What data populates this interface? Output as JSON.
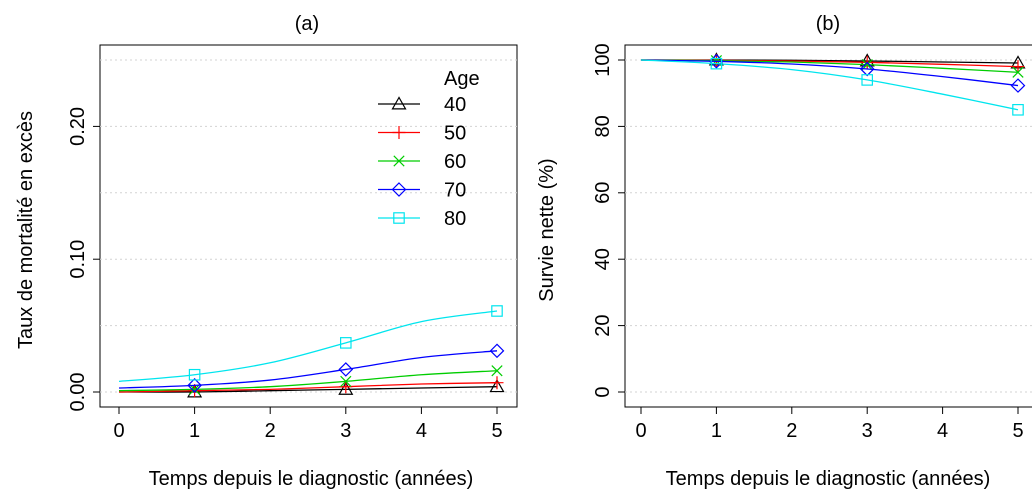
{
  "chart_data": [
    {
      "type": "line",
      "title": "(a)",
      "xlabel": "Temps depuis le diagnostic (années)",
      "ylabel": "Taux de mortalité en excès",
      "xlim": [
        0,
        5
      ],
      "ylim": [
        0,
        0.25
      ],
      "xticks": [
        0,
        1,
        2,
        3,
        4,
        5
      ],
      "yticks": [
        0.0,
        0.1,
        0.2
      ],
      "ytick_labels": [
        "0.00",
        "0.10",
        "0.20"
      ],
      "grid": "horizontal dotted at 0.00, 0.05, 0.10, 0.15, 0.20, 0.25",
      "legend": {
        "title": "Age",
        "placement": "top-right"
      },
      "x": [
        0,
        1,
        2,
        3,
        4,
        5
      ],
      "marker_x": [
        1,
        3,
        5
      ],
      "series": [
        {
          "name": "40",
          "color": "#000000",
          "marker": "triangle",
          "values": [
            0.0,
            0.0,
            0.001,
            0.002,
            0.003,
            0.004
          ]
        },
        {
          "name": "50",
          "color": "#ff0000",
          "marker": "plus",
          "values": [
            0.0,
            0.001,
            0.002,
            0.004,
            0.006,
            0.007
          ]
        },
        {
          "name": "60",
          "color": "#00cd00",
          "marker": "x",
          "values": [
            0.001,
            0.002,
            0.004,
            0.008,
            0.013,
            0.016
          ]
        },
        {
          "name": "70",
          "color": "#0000ff",
          "marker": "diamond",
          "values": [
            0.003,
            0.005,
            0.009,
            0.017,
            0.026,
            0.031
          ]
        },
        {
          "name": "80",
          "color": "#00e5ee",
          "marker": "square",
          "values": [
            0.008,
            0.013,
            0.022,
            0.037,
            0.053,
            0.061
          ]
        }
      ]
    },
    {
      "type": "line",
      "title": "(b)",
      "xlabel": "Temps depuis le diagnostic (années)",
      "ylabel": "Survie nette (%)",
      "xlim": [
        0,
        5
      ],
      "ylim": [
        0,
        100
      ],
      "xticks": [
        0,
        1,
        2,
        3,
        4,
        5
      ],
      "yticks": [
        0,
        20,
        40,
        60,
        80,
        100
      ],
      "ytick_labels": [
        "0",
        "20",
        "40",
        "60",
        "80",
        "100"
      ],
      "grid": "horizontal dotted at 0, 20, 40, 60, 80, 100",
      "x": [
        0,
        1,
        2,
        3,
        4,
        5
      ],
      "marker_x": [
        1,
        3,
        5
      ],
      "series": [
        {
          "name": "40",
          "color": "#000000",
          "marker": "triangle",
          "values": [
            100,
            100.0,
            99.9,
            99.7,
            99.4,
            99.1
          ]
        },
        {
          "name": "50",
          "color": "#ff0000",
          "marker": "plus",
          "values": [
            100,
            99.9,
            99.7,
            99.3,
            98.7,
            98.0
          ]
        },
        {
          "name": "60",
          "color": "#00cd00",
          "marker": "x",
          "values": [
            100,
            99.8,
            99.4,
            98.6,
            97.5,
            96.3
          ]
        },
        {
          "name": "70",
          "color": "#0000ff",
          "marker": "diamond",
          "values": [
            100,
            99.6,
            98.8,
            97.3,
            95.0,
            92.3
          ]
        },
        {
          "name": "80",
          "color": "#00e5ee",
          "marker": "square",
          "values": [
            100,
            98.9,
            97.1,
            94.0,
            89.7,
            85.0
          ]
        }
      ]
    }
  ]
}
